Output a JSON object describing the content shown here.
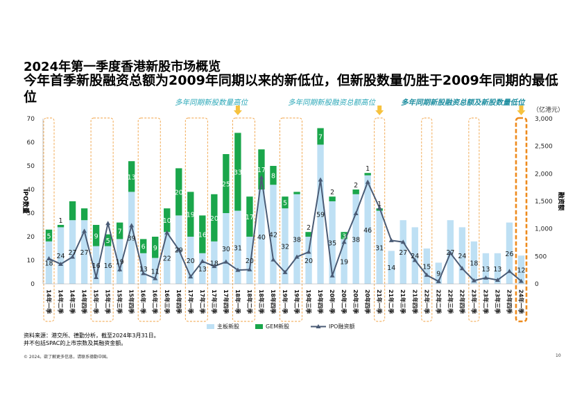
{
  "slide": {
    "title": "2024年第一季度香港新股市场概览",
    "subtitle": "今年首季新股融资总额为2009年同期以来的新低位，但新股数量仍胜于2009年同期的最低位",
    "annotations": [
      "多年同期新股数量高位",
      "多年同期新股融资总额高位",
      "多年同期新股融资总额及新股数量低位"
    ],
    "unit": "（亿港元）",
    "source_lines": [
      "资料来源：港交所、德勤分析，截至2024年3月31日。",
      "并不包括SPAC的上市宗数及其融资金额。"
    ],
    "footer": "© 2024。欲了解更多信息，请联系德勤中国。",
    "page_number": "10"
  },
  "colors": {
    "main_board": "#bee0f4",
    "gem": "#1aa64b",
    "line": "#4a5b75",
    "highlight_box": "#f0a040",
    "highlight_box_last": "#ee8a1c",
    "arrow": "#f6c23e"
  },
  "chart_data": {
    "type": "bar",
    "stacked": true,
    "categories": [
      "14年一季",
      "14年二季",
      "14年三季",
      "14年四季",
      "15年一季",
      "15年二季",
      "15年三季",
      "15年四季",
      "16年一季",
      "16年二季",
      "16年三季",
      "16年四季",
      "17年一季",
      "17年二季",
      "17年三季",
      "17年四季",
      "18年一季",
      "18年二季",
      "18年三季",
      "18年四季",
      "19年一季",
      "19年二季",
      "19年三季",
      "19年四季",
      "20年一季",
      "20年二季",
      "20年三季",
      "20年四季",
      "21年一季",
      "21年二季",
      "21年三季",
      "21年四季",
      "22年一季",
      "22年二季",
      "22年三季",
      "22年四季",
      "23年一季",
      "23年二季",
      "23年三季",
      "23年四季",
      "24年一季"
    ],
    "series": [
      {
        "name": "主板新股",
        "type": "bar",
        "values": [
          18,
          24,
          27,
          27,
          16,
          16,
          19,
          39,
          13,
          11,
          22,
          29,
          20,
          13,
          18,
          30,
          31,
          20,
          40,
          42,
          32,
          38,
          20,
          59,
          35,
          19,
          38,
          46,
          31,
          14,
          27,
          24,
          15,
          9,
          27,
          24,
          18,
          13,
          13,
          26,
          12
        ],
        "labels": [
          "18",
          "24",
          "27",
          "27",
          "16",
          "16",
          "19",
          "39",
          "13",
          "11",
          "22",
          "29",
          "20",
          "13",
          "18",
          "30",
          "31",
          "20",
          "40",
          "42",
          "32",
          "38",
          "20",
          "59",
          "35",
          "19",
          "38",
          "46",
          "31",
          "14",
          "27",
          "24",
          "15",
          "9",
          "27",
          "24",
          "18",
          "13",
          "13",
          "26",
          "12"
        ]
      },
      {
        "name": "GEM新股",
        "type": "bar",
        "values": [
          5,
          1,
          8,
          5,
          9,
          5,
          7,
          13,
          6,
          9,
          10,
          20,
          19,
          16,
          20,
          25,
          33,
          17,
          17,
          8,
          5,
          1,
          2,
          7,
          2,
          3,
          2,
          1,
          1,
          0,
          0,
          0,
          0,
          0,
          0,
          0,
          0,
          0,
          0,
          0,
          0
        ],
        "labels": [
          "5",
          "1",
          "",
          "",
          "9",
          "5",
          "7",
          "13",
          "6",
          "9",
          "10",
          "20",
          "19",
          "16",
          "20",
          "25",
          "33",
          "17",
          "17",
          "8",
          "5",
          "",
          "2",
          "7",
          "2",
          "3",
          "2",
          "1",
          "1",
          "",
          "",
          "",
          "",
          "",
          "",
          "",
          "",
          "",
          "",
          "",
          ""
        ]
      },
      {
        "name": "IPO融资额",
        "type": "line",
        "axis": "right",
        "values": [
          460,
          360,
          490,
          960,
          120,
          1100,
          260,
          1060,
          190,
          100,
          930,
          620,
          130,
          410,
          320,
          400,
          250,
          260,
          1930,
          440,
          210,
          490,
          580,
          1890,
          150,
          760,
          1280,
          1850,
          1380,
          790,
          760,
          430,
          160,
          45,
          560,
          280,
          60,
          110,
          70,
          230,
          50
        ]
      }
    ],
    "yleft": {
      "label": "IPO数量",
      "range": [
        0,
        70
      ],
      "ticks": [
        "0",
        "10",
        "20",
        "30",
        "40",
        "50",
        "60",
        "70"
      ]
    },
    "yright": {
      "label": "融资额",
      "range": [
        0,
        3000
      ],
      "ticks": [
        "0",
        "500",
        "1,000",
        "1,500",
        "2,000",
        "2,500",
        "3,000"
      ]
    },
    "legend": {
      "position": "bottom",
      "items": [
        "主板新股",
        "GEM新股",
        "IPO融资额"
      ]
    },
    "highlight_groups": [
      [
        0,
        0
      ],
      [
        4,
        5
      ],
      [
        8,
        9
      ],
      [
        12,
        13
      ],
      [
        16,
        17
      ],
      [
        20,
        21
      ],
      [
        28,
        28
      ],
      [
        32,
        32
      ],
      [
        36,
        36
      ],
      [
        40,
        40
      ]
    ],
    "annotation_arrows": [
      16,
      28,
      40
    ]
  }
}
